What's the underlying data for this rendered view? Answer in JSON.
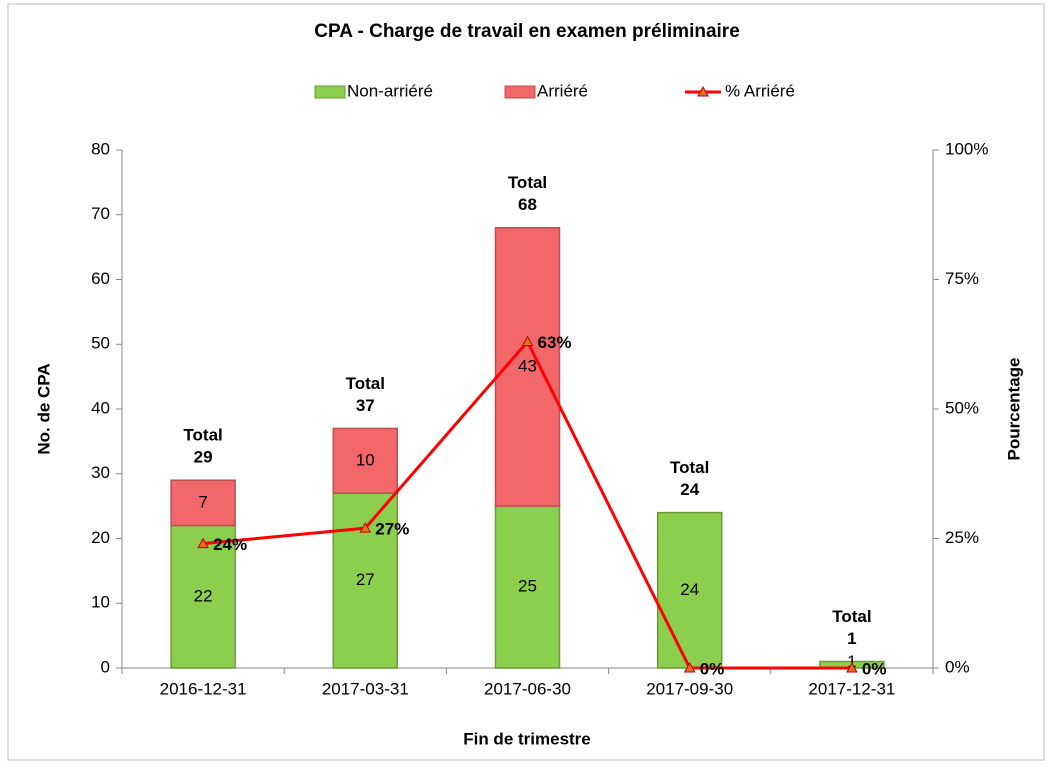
{
  "chart_data": {
    "type": "stacked-bar-line",
    "title": "CPA - Charge de travail en examen préliminaire",
    "x_label": "Fin de trimestre",
    "y_label": "No. de CPA",
    "y2_label": "Pourcentage",
    "categories": [
      "2016-12-31",
      "2017-03-31",
      "2017-06-30",
      "2017-09-30",
      "2017-12-31"
    ],
    "series": [
      {
        "name": "Non-arriéré",
        "color": "#8ccf4d",
        "values": [
          22,
          27,
          25,
          24,
          1
        ]
      },
      {
        "name": "Arriéré",
        "color": "#f2676a",
        "values": [
          7,
          10,
          43,
          0,
          0
        ]
      },
      {
        "name": "% Arriéré",
        "color": "#ff0000",
        "axis": "y2",
        "values": [
          24,
          27,
          63,
          0,
          0
        ],
        "value_labels": [
          "24%",
          "27%",
          "63%",
          "0%",
          "0%"
        ]
      }
    ],
    "totals": {
      "label": "Total",
      "values": [
        29,
        37,
        68,
        24,
        1
      ]
    },
    "ylim": [
      0,
      80
    ],
    "yticks": [
      0,
      10,
      20,
      30,
      40,
      50,
      60,
      70,
      80
    ],
    "y2lim": [
      0,
      100
    ],
    "y2ticks": [
      {
        "value": 0,
        "label": "0%"
      },
      {
        "value": 25,
        "label": "25%"
      },
      {
        "value": 50,
        "label": "50%"
      },
      {
        "value": 75,
        "label": "75%"
      },
      {
        "value": 100,
        "label": "100%"
      }
    ]
  }
}
